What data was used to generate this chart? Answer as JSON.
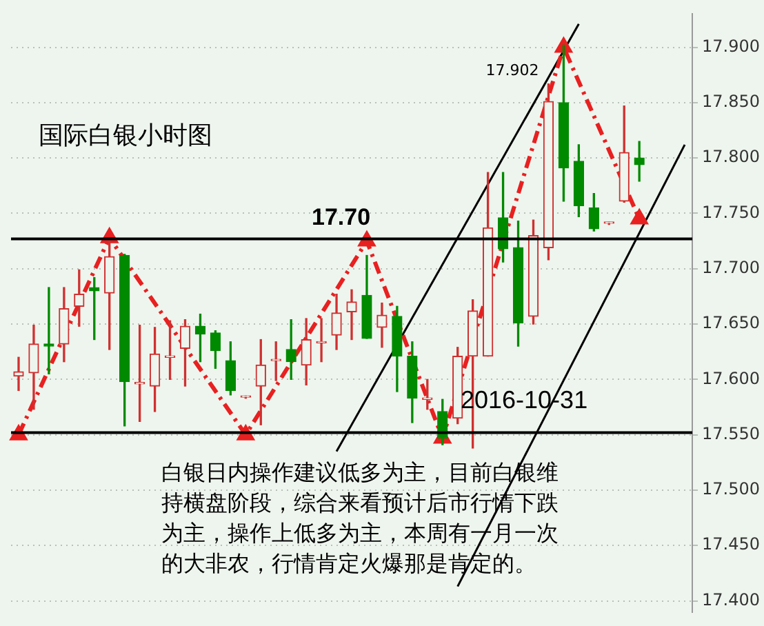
{
  "chart_data": {
    "type": "candlestick",
    "title": "国际白银小时图",
    "categories": [
      null,
      null,
      null,
      null,
      null,
      null,
      null,
      null,
      null,
      null,
      null,
      null,
      null,
      null,
      null,
      null,
      null,
      null,
      null,
      null,
      null,
      null,
      null,
      null,
      null,
      null,
      null,
      null,
      null,
      null,
      null,
      null,
      null,
      null,
      null,
      null,
      null,
      null,
      null,
      null,
      null,
      null,
      null,
      null,
      null
    ],
    "ohlc": [
      [
        17.603,
        17.62,
        17.59,
        17.607
      ],
      [
        17.606,
        17.649,
        17.573,
        17.632
      ],
      [
        17.632,
        17.683,
        17.605,
        17.63
      ],
      [
        17.632,
        17.683,
        17.616,
        17.664
      ],
      [
        17.666,
        17.699,
        17.648,
        17.677
      ],
      [
        17.683,
        17.692,
        17.636,
        17.68
      ],
      [
        17.678,
        17.728,
        17.627,
        17.711
      ],
      [
        17.712,
        17.713,
        17.558,
        17.598
      ],
      [
        17.596,
        17.649,
        17.562,
        17.597
      ],
      [
        17.594,
        17.647,
        17.571,
        17.623
      ],
      [
        17.62,
        17.653,
        17.6,
        17.621
      ],
      [
        17.628,
        17.654,
        17.594,
        17.648
      ],
      [
        17.648,
        17.659,
        17.616,
        17.641
      ],
      [
        17.642,
        17.644,
        17.61,
        17.626
      ],
      [
        17.617,
        17.634,
        17.586,
        17.59
      ],
      [
        17.584,
        17.585,
        17.583,
        17.584
      ],
      [
        17.594,
        17.636,
        17.559,
        17.613
      ],
      [
        17.617,
        17.634,
        17.599,
        17.618
      ],
      [
        17.627,
        17.654,
        17.6,
        17.616
      ],
      [
        17.613,
        17.655,
        17.595,
        17.636
      ],
      [
        17.633,
        17.655,
        17.616,
        17.634
      ],
      [
        17.64,
        17.677,
        17.627,
        17.66
      ],
      [
        17.661,
        17.681,
        17.636,
        17.67
      ],
      [
        17.676,
        17.712,
        17.637,
        17.637
      ],
      [
        17.647,
        17.669,
        17.629,
        17.658
      ],
      [
        17.657,
        17.666,
        17.589,
        17.621
      ],
      [
        17.621,
        17.634,
        17.561,
        17.583
      ],
      [
        17.582,
        17.6,
        17.573,
        17.583
      ],
      [
        17.571,
        17.582,
        17.541,
        17.547
      ],
      [
        17.565,
        17.629,
        17.56,
        17.621
      ],
      [
        17.621,
        17.672,
        17.538,
        17.662
      ],
      [
        17.621,
        17.787,
        17.621,
        17.737
      ],
      [
        17.746,
        17.787,
        17.706,
        17.718
      ],
      [
        17.719,
        17.743,
        17.63,
        17.651
      ],
      [
        17.657,
        17.744,
        17.65,
        17.73
      ],
      [
        17.719,
        17.867,
        17.708,
        17.851
      ],
      [
        17.85,
        17.902,
        17.761,
        17.791
      ],
      [
        17.797,
        17.812,
        17.747,
        17.757
      ],
      [
        17.755,
        17.768,
        17.734,
        17.736
      ],
      [
        17.741,
        17.742,
        17.74,
        17.741
      ],
      [
        17.761,
        17.847,
        17.76,
        17.805
      ],
      [
        17.8,
        17.815,
        17.779,
        17.794
      ],
      null,
      null,
      null
    ],
    "series": [
      {
        "type": "line",
        "color": "#e82020",
        "line_style": "dashed",
        "marker": "triangle",
        "values": [
          17.55,
          null,
          null,
          null,
          null,
          null,
          17.728,
          null,
          null,
          null,
          null,
          null,
          null,
          null,
          null,
          17.55,
          null,
          null,
          null,
          null,
          null,
          null,
          null,
          17.725,
          null,
          null,
          null,
          null,
          17.547,
          null,
          null,
          null,
          null,
          null,
          null,
          null,
          17.9,
          null,
          null,
          null,
          null,
          17.745,
          null,
          null,
          null
        ]
      },
      {
        "type": "line",
        "color": "#000000",
        "line_style": "solid",
        "marker": "none",
        "values": [
          null,
          null,
          null,
          null,
          null,
          null,
          null,
          null,
          null,
          null,
          null,
          null,
          null,
          null,
          null,
          null,
          null,
          null,
          null,
          null,
          null,
          17.535,
          null,
          null,
          null,
          null,
          null,
          null,
          null,
          null,
          null,
          null,
          null,
          null,
          null,
          null,
          null,
          17.921,
          null,
          null,
          null,
          null,
          null,
          null,
          null
        ]
      },
      {
        "type": "line",
        "color": "#000000",
        "line_style": "solid",
        "marker": "none",
        "values": [
          null,
          null,
          null,
          null,
          null,
          null,
          null,
          null,
          null,
          null,
          null,
          null,
          null,
          null,
          null,
          null,
          null,
          null,
          null,
          null,
          null,
          null,
          null,
          null,
          null,
          null,
          null,
          null,
          null,
          17.413,
          null,
          null,
          null,
          null,
          null,
          null,
          null,
          null,
          null,
          null,
          null,
          null,
          null,
          null,
          17.812
        ]
      }
    ],
    "ylim": [
      17.39,
      17.93
    ],
    "yticks": [
      {
        "value": 17.4,
        "label": "17.400"
      },
      {
        "value": 17.45,
        "label": "17.450"
      },
      {
        "value": 17.5,
        "label": "17.500"
      },
      {
        "value": 17.55,
        "label": "17.550"
      },
      {
        "value": 17.6,
        "label": "17.600"
      },
      {
        "value": 17.65,
        "label": "17.650"
      },
      {
        "value": 17.7,
        "label": "17.700"
      },
      {
        "value": 17.75,
        "label": "17.750"
      },
      {
        "value": 17.8,
        "label": "17.800"
      },
      {
        "value": 17.85,
        "label": "17.850"
      },
      {
        "value": 17.9,
        "label": "17.900"
      }
    ],
    "grid": "y",
    "tick_labels": "y",
    "ref_lines": [
      {
        "axis": "y",
        "value": 17.727,
        "color": "#000000"
      },
      {
        "axis": "y",
        "value": 17.552,
        "color": "#000000"
      }
    ],
    "annotations": [
      "17.902",
      "17.70",
      "白银日内操作建议低多为主，目前白银维持横盘阶段，综合来看预计后市行情下跌为主，操作上低多为主，本周有一月一次的大非农，行情肯定火爆那是肯定的。",
      "2016-10-31"
    ]
  }
}
